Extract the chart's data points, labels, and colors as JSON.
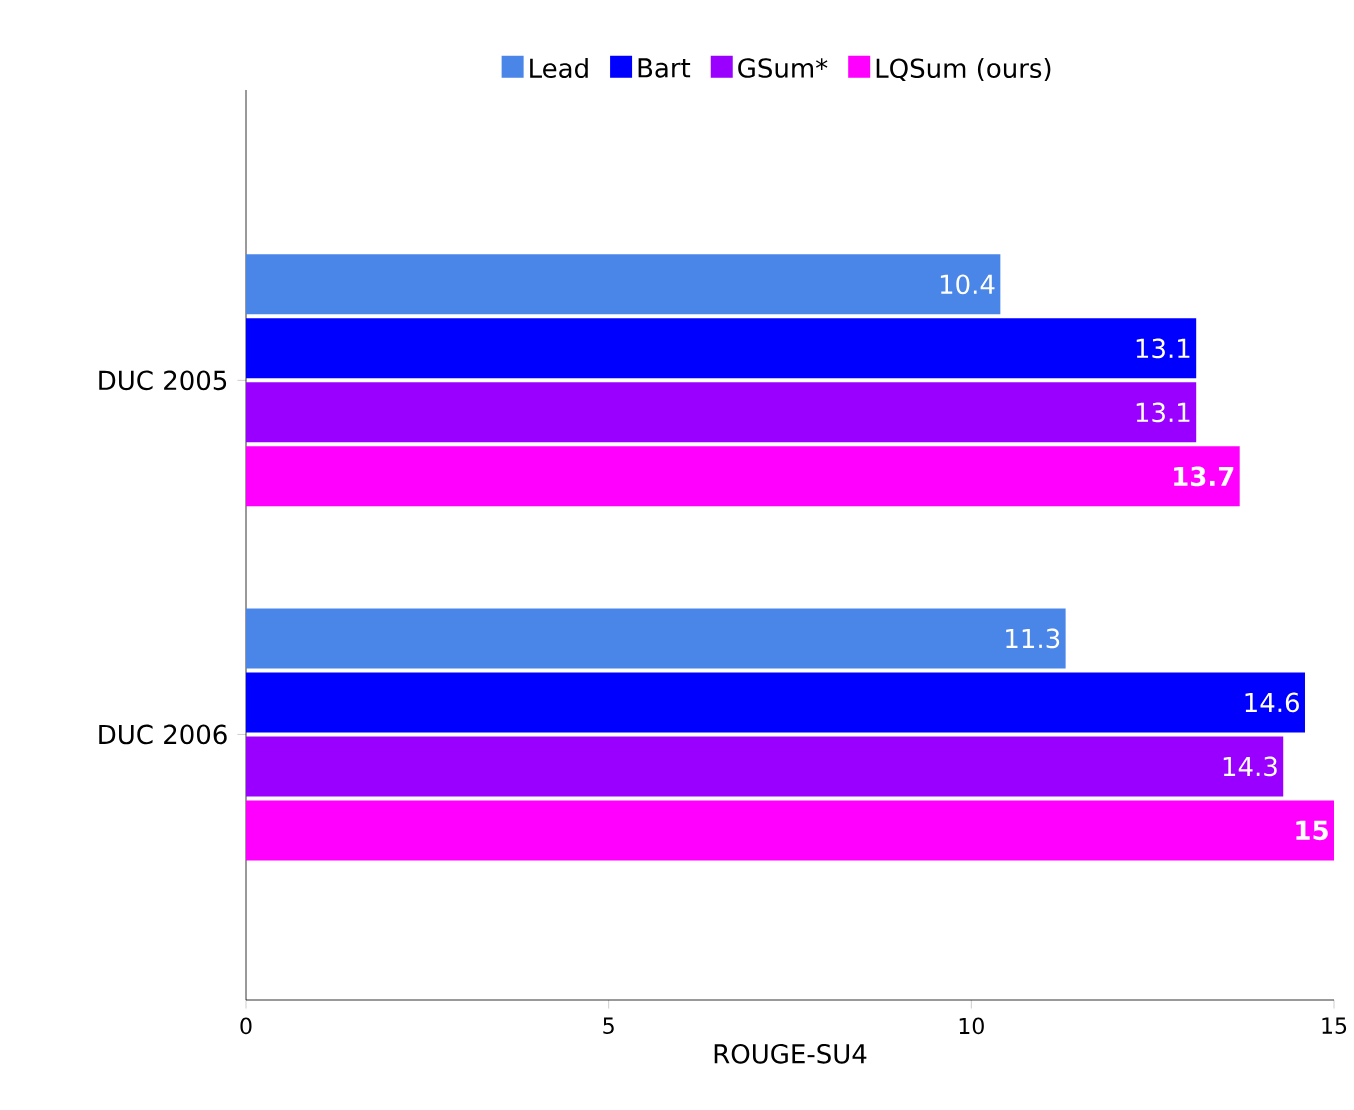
{
  "chart_data": {
    "type": "bar",
    "orientation": "horizontal",
    "categories": [
      "DUC 2005",
      "DUC 2006"
    ],
    "xlabel": "ROUGE-SU4",
    "xlim": [
      0,
      15
    ],
    "xticks": [
      0,
      5,
      10,
      15
    ],
    "data_labels": true,
    "legend": "top",
    "grid": false,
    "series": [
      {
        "name": "Lead",
        "color": "#4a86e8",
        "values": [
          10.4,
          11.3
        ]
      },
      {
        "name": "Bart",
        "color": "#0000ff",
        "values": [
          13.1,
          14.6
        ]
      },
      {
        "name": "GSum*",
        "color": "#9900ff",
        "values": [
          13.1,
          14.3
        ]
      },
      {
        "name": "LQSum (ours)",
        "color": "#ff00ff",
        "values": [
          13.7,
          15
        ]
      }
    ]
  }
}
